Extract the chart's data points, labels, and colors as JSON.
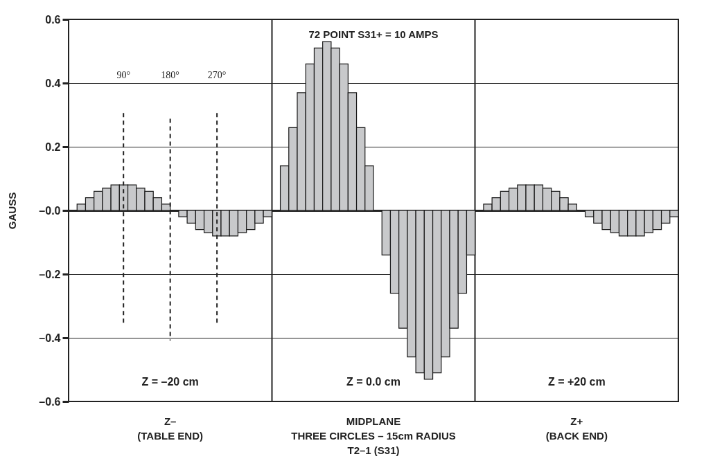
{
  "chart_data": {
    "type": "bar",
    "title": "72 POINT S31+ = 10 AMPS",
    "ylabel": "GAUSS",
    "color": "#c8c9cb",
    "categories": [
      null,
      null,
      null,
      null,
      null,
      null,
      null,
      null,
      null,
      null,
      null,
      null,
      null,
      null,
      null,
      null,
      null,
      null,
      null,
      null,
      null,
      null,
      null,
      null,
      null,
      null,
      null,
      null,
      null,
      null,
      null,
      null,
      null,
      null,
      null,
      null,
      null,
      null,
      null,
      null,
      null,
      null,
      null,
      null,
      null,
      null,
      null,
      null,
      null,
      null,
      null,
      null,
      null,
      null,
      null,
      null,
      null,
      null,
      null,
      null,
      null,
      null,
      null,
      null,
      null,
      null,
      null,
      null,
      null,
      null,
      null,
      null
    ],
    "values": [
      null,
      0.02,
      0.04,
      0.06,
      0.07,
      0.08,
      0.08,
      0.08,
      0.07,
      0.06,
      0.04,
      0.02,
      null,
      -0.02,
      -0.04,
      -0.06,
      -0.07,
      -0.08,
      -0.08,
      -0.08,
      -0.07,
      -0.06,
      -0.04,
      -0.02,
      null,
      0.14,
      0.26,
      0.37,
      0.46,
      0.51,
      0.53,
      0.51,
      0.46,
      0.37,
      0.26,
      0.14,
      null,
      -0.14,
      -0.26,
      -0.37,
      -0.46,
      -0.51,
      -0.53,
      -0.51,
      -0.46,
      -0.37,
      -0.26,
      -0.14,
      null,
      0.02,
      0.04,
      0.06,
      0.07,
      0.08,
      0.08,
      0.08,
      0.07,
      0.06,
      0.04,
      0.02,
      null,
      -0.02,
      -0.04,
      -0.06,
      -0.07,
      -0.08,
      -0.08,
      -0.08,
      -0.07,
      -0.06,
      -0.04,
      -0.02
    ],
    "ylim": [
      -0.6,
      0.6
    ],
    "yticks": [
      {
        "value": -0.6,
        "label": "–0.6"
      },
      {
        "value": -0.4,
        "label": "–0.4"
      },
      {
        "value": -0.2,
        "label": "–0.2"
      },
      {
        "value": 0,
        "label": "–0.0"
      },
      0.2,
      0.4,
      0.6
    ],
    "grid": "y",
    "annotations": [
      "90°",
      "180°",
      "270°",
      "Z = –20 cm",
      "Z = 0.0 cm",
      "Z = +20 cm",
      "Z–\n(TABLE END)",
      "MIDPLANE\nTHREE CIRCLES – 15cm RADIUS\nT2–1  (S31)",
      "Z+\n(BACK END)"
    ]
  }
}
